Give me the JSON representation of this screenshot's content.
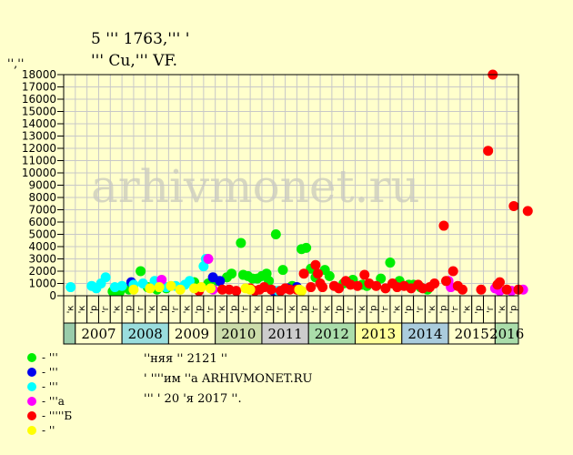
{
  "title_line1": "5 ꞌꞌꞌ 1763,ꞌꞌꞌ ꞌ",
  "title_line2": "ꞌꞌꞌ Cu,ꞌꞌꞌ VF.",
  "watermark": "arhivmonet.ru",
  "legend": [
    {
      "label": "- ꞌꞌꞌ",
      "color": "#00ee00"
    },
    {
      "label": "- ꞌꞌꞌ",
      "color": "#0000ee"
    },
    {
      "label": "- ꞌꞌꞌ",
      "color": "#00ffff"
    },
    {
      "label": "- ꞌꞌꞌa",
      "color": "#ff00ff"
    },
    {
      "label": "- ꞌꞌꞌꞌꞌБ",
      "color": "#ff0000"
    },
    {
      "label": "- ꞌꞌ",
      "color": "#ffff00"
    }
  ],
  "info": {
    "line1": "ꞌꞌняя ꞌꞌ 2121 ꞌꞌ",
    "line2": "ꞌ ꞌꞌꞌꞌим ꞌꞌa ARHIVMONET.RU",
    "line3": "ꞌꞌꞌ ꞌ 20 ꞌя 2017 ꞌꞌ."
  },
  "chart_data": {
    "type": "scatter",
    "ylabel": "ꞌꞌ,ꞌꞌ",
    "ylim": [
      0,
      18000
    ],
    "yticks": [
      0,
      1000,
      2000,
      3000,
      4000,
      5000,
      6000,
      7000,
      8000,
      9000,
      10000,
      11000,
      12000,
      13000,
      14000,
      15000,
      16000,
      17000,
      18000
    ],
    "grid": true,
    "quarter_labels": [
      "ꞌк",
      "ꞌк",
      "ꞌр",
      "ꞌг",
      "ꞌк",
      "ꞌр",
      "ꞌг",
      "ꞌк",
      "ꞌр",
      "ꞌг",
      "ꞌк",
      "ꞌр",
      "ꞌг",
      "ꞌк",
      "ꞌр",
      "ꞌг",
      "ꞌк",
      "ꞌр",
      "ꞌг",
      "ꞌк",
      "ꞌр",
      "ꞌг",
      "ꞌк",
      "ꞌр",
      "ꞌг",
      "ꞌк",
      "ꞌр",
      "ꞌг",
      "ꞌк",
      "ꞌр",
      "ꞌг",
      "ꞌк",
      "ꞌр",
      "ꞌг",
      "ꞌк",
      "ꞌр",
      "ꞌг",
      "ꞌк",
      "ꞌр"
    ],
    "years": [
      {
        "label": "2007",
        "color": "#ffffcc"
      },
      {
        "label": "2008",
        "color": "#99dddd"
      },
      {
        "label": "2009",
        "color": "#ffffcc"
      },
      {
        "label": "2010",
        "color": "#ccddaa"
      },
      {
        "label": "2011",
        "color": "#cccccc"
      },
      {
        "label": "2012",
        "color": "#aaddaa"
      },
      {
        "label": "2013",
        "color": "#ffff99"
      },
      {
        "label": "2014",
        "color": "#aaccdd"
      },
      {
        "label": "2015",
        "color": "#ffffcc"
      },
      {
        "label": "2016",
        "color": "#aaddaa"
      }
    ],
    "series": [
      {
        "color": "#00ee00",
        "points": [
          [
            2007.55,
            350
          ],
          [
            2007.7,
            300
          ],
          [
            2007.9,
            500
          ],
          [
            2008.15,
            2000
          ],
          [
            2008.3,
            700
          ],
          [
            2008.5,
            500
          ],
          [
            2008.7,
            600
          ],
          [
            2009.0,
            600
          ],
          [
            2009.3,
            1100
          ],
          [
            2009.6,
            1000
          ],
          [
            2009.8,
            1200
          ],
          [
            2010.0,
            1500
          ],
          [
            2010.1,
            1800
          ],
          [
            2010.3,
            4300
          ],
          [
            2010.35,
            1700
          ],
          [
            2010.45,
            1600
          ],
          [
            2010.55,
            1400
          ],
          [
            2010.65,
            1400
          ],
          [
            2010.75,
            1600
          ],
          [
            2010.85,
            1800
          ],
          [
            2010.9,
            1200
          ],
          [
            2011.05,
            5000
          ],
          [
            2011.2,
            2100
          ],
          [
            2011.4,
            800
          ],
          [
            2011.6,
            3800
          ],
          [
            2011.7,
            3900
          ],
          [
            2011.8,
            2200
          ],
          [
            2011.9,
            1500
          ],
          [
            2012.1,
            2100
          ],
          [
            2012.2,
            1600
          ],
          [
            2012.5,
            1000
          ],
          [
            2012.7,
            1300
          ],
          [
            2012.9,
            900
          ],
          [
            2013.0,
            800
          ],
          [
            2013.3,
            1400
          ],
          [
            2013.5,
            2700
          ],
          [
            2013.7,
            1200
          ],
          [
            2013.9,
            900
          ],
          [
            2014.0,
            900
          ],
          [
            2014.15,
            700
          ],
          [
            2014.3,
            500
          ]
        ]
      },
      {
        "color": "#0000ee",
        "points": [
          [
            2007.95,
            1100
          ],
          [
            2009.7,
            1500
          ],
          [
            2009.85,
            1200
          ],
          [
            2011.0,
            400
          ],
          [
            2011.3,
            600
          ],
          [
            2011.5,
            700
          ]
        ]
      },
      {
        "color": "#00ffff",
        "points": [
          [
            2006.65,
            700
          ],
          [
            2007.1,
            800
          ],
          [
            2007.2,
            600
          ],
          [
            2007.3,
            1000
          ],
          [
            2007.4,
            1500
          ],
          [
            2007.6,
            700
          ],
          [
            2007.75,
            800
          ],
          [
            2008.0,
            900
          ],
          [
            2008.2,
            1000
          ],
          [
            2008.45,
            1200
          ],
          [
            2008.7,
            700
          ],
          [
            2008.9,
            800
          ],
          [
            2009.1,
            900
          ],
          [
            2009.2,
            1200
          ],
          [
            2009.5,
            2400
          ],
          [
            2009.55,
            3000
          ],
          [
            2011.1,
            400
          ]
        ]
      },
      {
        "color": "#ff00ff",
        "points": [
          [
            2008.6,
            1300
          ],
          [
            2009.6,
            3000
          ],
          [
            2009.7,
            500
          ],
          [
            2014.75,
            1200
          ],
          [
            2014.8,
            700
          ],
          [
            2015.75,
            600
          ],
          [
            2015.85,
            400
          ],
          [
            2016.1,
            400
          ],
          [
            2016.35,
            500
          ]
        ]
      },
      {
        "color": "#ff0000",
        "points": [
          [
            2009.4,
            400
          ],
          [
            2009.9,
            500
          ],
          [
            2010.05,
            500
          ],
          [
            2010.2,
            400
          ],
          [
            2010.5,
            600
          ],
          [
            2010.6,
            400
          ],
          [
            2010.7,
            500
          ],
          [
            2010.8,
            700
          ],
          [
            2010.95,
            500
          ],
          [
            2011.15,
            400
          ],
          [
            2011.25,
            600
          ],
          [
            2011.35,
            500
          ],
          [
            2011.5,
            500
          ],
          [
            2011.65,
            1800
          ],
          [
            2011.8,
            700
          ],
          [
            2011.9,
            2500
          ],
          [
            2011.95,
            1800
          ],
          [
            2012.0,
            1000
          ],
          [
            2012.05,
            700
          ],
          [
            2012.3,
            800
          ],
          [
            2012.4,
            600
          ],
          [
            2012.55,
            1200
          ],
          [
            2012.65,
            900
          ],
          [
            2012.8,
            800
          ],
          [
            2012.95,
            1700
          ],
          [
            2013.05,
            1000
          ],
          [
            2013.2,
            800
          ],
          [
            2013.4,
            600
          ],
          [
            2013.55,
            1000
          ],
          [
            2013.65,
            700
          ],
          [
            2013.8,
            800
          ],
          [
            2013.95,
            600
          ],
          [
            2014.1,
            900
          ],
          [
            2014.2,
            600
          ],
          [
            2014.35,
            700
          ],
          [
            2014.45,
            1000
          ],
          [
            2014.65,
            5700
          ],
          [
            2014.7,
            1200
          ],
          [
            2014.85,
            2000
          ],
          [
            2014.95,
            800
          ],
          [
            2015.05,
            500
          ],
          [
            2015.45,
            500
          ],
          [
            2015.6,
            11800
          ],
          [
            2015.7,
            18000
          ],
          [
            2015.8,
            900
          ],
          [
            2015.85,
            1100
          ],
          [
            2016.0,
            500
          ],
          [
            2016.15,
            7300
          ],
          [
            2016.25,
            500
          ],
          [
            2016.45,
            6900
          ]
        ]
      },
      {
        "color": "#ffff00",
        "points": [
          [
            2008.0,
            500
          ],
          [
            2008.35,
            600
          ],
          [
            2008.55,
            700
          ],
          [
            2008.8,
            800
          ],
          [
            2009.0,
            500
          ],
          [
            2009.3,
            600
          ],
          [
            2009.45,
            700
          ],
          [
            2009.65,
            600
          ],
          [
            2010.4,
            600
          ],
          [
            2010.5,
            500
          ],
          [
            2011.55,
            500
          ],
          [
            2011.6,
            400
          ]
        ]
      }
    ]
  }
}
